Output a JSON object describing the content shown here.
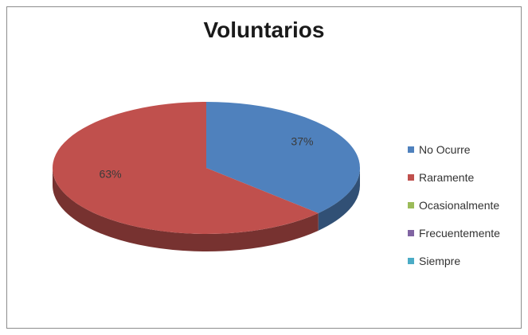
{
  "chart_data": {
    "type": "pie",
    "title": "Voluntarios",
    "categories": [
      "No Ocurre",
      "Raramente",
      "Ocasionalmente",
      "Frecuentemente",
      "Siempre"
    ],
    "values": [
      37,
      63,
      0,
      0,
      0
    ],
    "data_labels": [
      "37%",
      "63%",
      "",
      "",
      ""
    ],
    "colors": [
      "#4f81bd",
      "#c0504d",
      "#9bbb59",
      "#8064a2",
      "#4bacc6"
    ],
    "legend_position": "right",
    "style": "3d"
  }
}
